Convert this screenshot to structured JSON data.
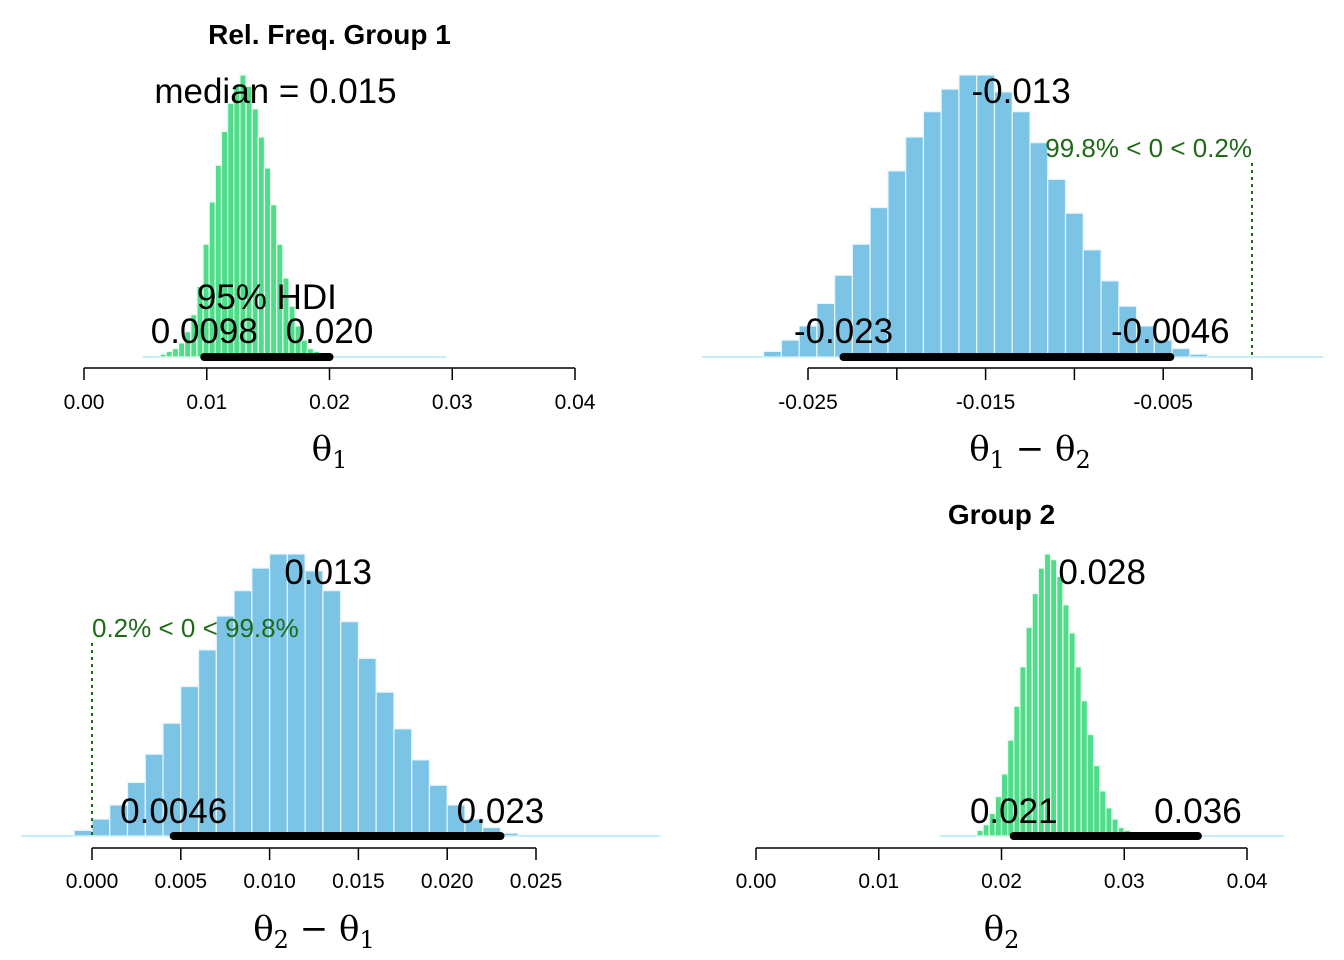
{
  "colors": {
    "green_bar": "#4fdd8a",
    "green_edge": "#e8fff0",
    "blue_bar": "#7cc4e6",
    "blue_edge": "#e6f6ff",
    "hdi": "#000000",
    "comp": "#1e6a17",
    "tail": "#c5eefc"
  },
  "chart_data": [
    {
      "id": "theta1",
      "type": "bar",
      "title": "Rel. Freq. Group 1",
      "xlabel": "θ",
      "xlabel_sub": "1",
      "xlim": [
        0,
        0.04
      ],
      "ticks": [
        0,
        0.01,
        0.02,
        0.03,
        0.04
      ],
      "tick_labels": [
        "0.00",
        "0.01",
        "0.02",
        "0.03",
        "0.04"
      ],
      "central_label": "median = 0.015",
      "hdi_label": "95% HDI",
      "hdi": [
        0.0098,
        0.02
      ],
      "hdi_labels": [
        "0.0098",
        "0.020"
      ],
      "bins": {
        "start": 0.0062,
        "width": 0.0005,
        "heights": [
          1,
          2,
          3,
          5,
          9,
          15,
          25,
          40,
          55,
          68,
          80,
          90,
          96,
          100,
          96,
          88,
          78,
          67,
          54,
          40,
          28,
          18,
          11,
          6,
          3,
          2,
          1
        ]
      },
      "tail_range": [
        0.0048,
        0.0295
      ]
    },
    {
      "id": "diff12",
      "type": "bar",
      "title": "",
      "xlabel": "θ",
      "xlabel_sub": "1",
      "xlabel_op": " − θ",
      "xlabel_sub2": "2",
      "xlim": [
        -0.025,
        0
      ],
      "ticks": [
        -0.025,
        -0.02,
        -0.015,
        -0.01,
        -0.005,
        0
      ],
      "tick_labels": [
        "-0.025",
        "",
        "-0.015",
        "",
        "-0.005",
        ""
      ],
      "central_label": "-0.013",
      "hdi": [
        -0.023,
        -0.0046
      ],
      "hdi_labels": [
        "-0.023",
        "-0.0046"
      ],
      "comparison": {
        "value": 0,
        "label": "99.8% < 0 < 0.2%"
      },
      "bins": {
        "start": -0.0275,
        "width": 0.001,
        "heights": [
          2,
          6,
          11,
          19,
          29,
          40,
          53,
          66,
          78,
          87,
          95,
          100,
          100,
          94,
          87,
          76,
          63,
          51,
          38,
          27,
          18,
          11,
          6,
          3,
          1
        ]
      },
      "tail_range": [
        -0.031,
        0.004
      ]
    },
    {
      "id": "diff21",
      "type": "bar",
      "title": "",
      "xlabel": "θ",
      "xlabel_sub": "2",
      "xlabel_op": " − θ",
      "xlabel_sub2": "1",
      "xlim": [
        0,
        0.025
      ],
      "ticks": [
        0,
        0.005,
        0.01,
        0.015,
        0.02,
        0.025
      ],
      "tick_labels": [
        "0.000",
        "0.005",
        "0.010",
        "0.015",
        "0.020",
        "0.025"
      ],
      "central_label": "0.013",
      "hdi": [
        0.0046,
        0.023
      ],
      "hdi_labels": [
        "0.0046",
        "0.023"
      ],
      "comparison": {
        "value": 0,
        "label": "0.2% < 0 < 99.8%"
      },
      "bins": {
        "start": -0.001,
        "width": 0.001,
        "heights": [
          2,
          6,
          11,
          19,
          29,
          40,
          53,
          66,
          78,
          87,
          95,
          100,
          100,
          94,
          87,
          76,
          63,
          51,
          38,
          27,
          18,
          11,
          6,
          3,
          1
        ]
      },
      "tail_range": [
        -0.004,
        0.032
      ]
    },
    {
      "id": "theta2",
      "type": "bar",
      "title": "Group 2",
      "xlabel": "θ",
      "xlabel_sub": "2",
      "xlim": [
        0,
        0.04
      ],
      "ticks": [
        0,
        0.01,
        0.02,
        0.03,
        0.04
      ],
      "tick_labels": [
        "0.00",
        "0.01",
        "0.02",
        "0.03",
        "0.04"
      ],
      "central_label": "0.028",
      "hdi": [
        0.021,
        0.036
      ],
      "hdi_labels": [
        "0.021",
        "0.036"
      ],
      "bins": {
        "start": 0.018,
        "width": 0.0005,
        "heights": [
          2,
          4,
          8,
          14,
          22,
          34,
          46,
          60,
          74,
          86,
          95,
          100,
          98,
          92,
          82,
          72,
          60,
          48,
          36,
          25,
          16,
          10,
          6,
          3,
          2,
          1
        ]
      },
      "tail_range": [
        0.015,
        0.043
      ]
    }
  ]
}
